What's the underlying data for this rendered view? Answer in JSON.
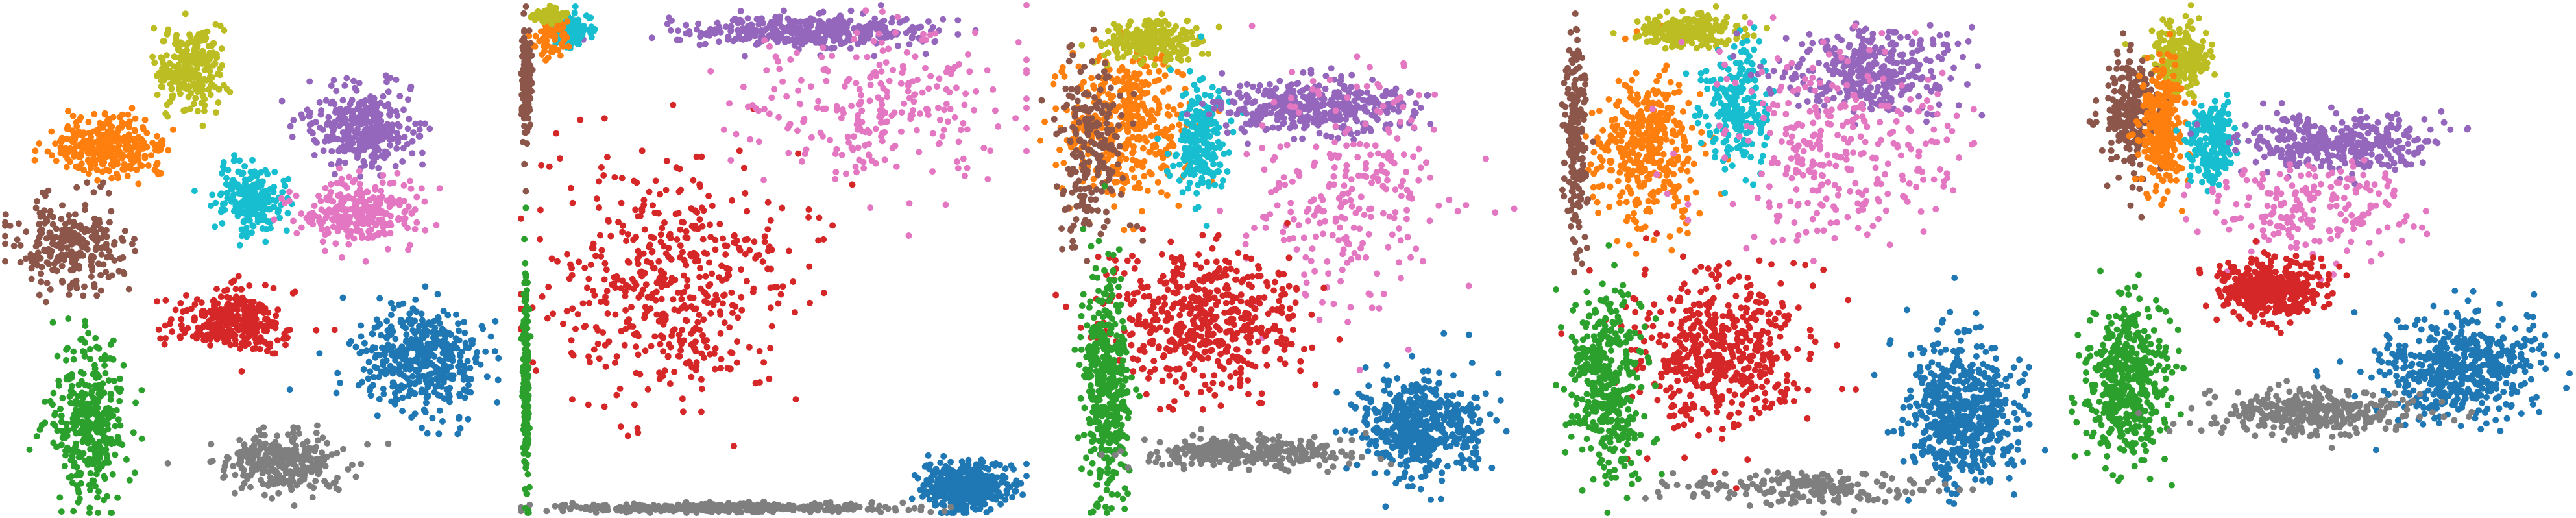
{
  "chart_data": [
    {
      "type": "scatter",
      "title": "",
      "xlabel": "",
      "ylabel": "",
      "xlim": [
        0,
        100
      ],
      "ylim": [
        0,
        100
      ],
      "grid": false,
      "legend": "none",
      "axes_visible": false,
      "series": [
        {
          "color": "#bcbd22",
          "count": 260,
          "center": [
            37,
            88
          ],
          "spread": [
            6,
            7
          ]
        },
        {
          "color": "#ff7f0e",
          "count": 300,
          "center": [
            20,
            72
          ],
          "spread": [
            10,
            5
          ]
        },
        {
          "color": "#8c564b",
          "count": 260,
          "center": [
            13,
            53
          ],
          "spread": [
            10,
            8
          ]
        },
        {
          "color": "#17becf",
          "count": 220,
          "center": [
            49,
            62
          ],
          "spread": [
            6,
            6
          ]
        },
        {
          "color": "#9467bd",
          "count": 320,
          "center": [
            71,
            76
          ],
          "spread": [
            10,
            7
          ]
        },
        {
          "color": "#e377c2",
          "count": 280,
          "center": [
            70,
            59
          ],
          "spread": [
            10,
            6
          ]
        },
        {
          "color": "#d62728",
          "count": 320,
          "center": [
            45,
            38
          ],
          "spread": [
            10,
            5
          ]
        },
        {
          "color": "#1f77b4",
          "count": 420,
          "center": [
            83,
            30
          ],
          "spread": [
            12,
            10
          ]
        },
        {
          "color": "#2ca02c",
          "count": 360,
          "center": [
            17,
            18
          ],
          "spread": [
            7,
            14
          ]
        },
        {
          "color": "#7f7f7f",
          "count": 300,
          "center": [
            55,
            10
          ],
          "spread": [
            11,
            5
          ]
        }
      ]
    },
    {
      "type": "scatter",
      "title": "",
      "xlabel": "",
      "ylabel": "",
      "xlim": [
        0,
        100
      ],
      "ylim": [
        0,
        100
      ],
      "grid": false,
      "legend": "none",
      "axes_visible": false,
      "series": [
        {
          "color": "#d62728",
          "count": 500,
          "center": [
            30,
            45
          ],
          "spread": [
            22,
            22
          ]
        },
        {
          "color": "#9467bd",
          "count": 380,
          "center": [
            58,
            95
          ],
          "spread": [
            22,
            3
          ]
        },
        {
          "color": "#e377c2",
          "count": 260,
          "center": [
            72,
            80
          ],
          "spread": [
            25,
            15
          ]
        },
        {
          "color": "#17becf",
          "count": 120,
          "center": [
            10,
            95
          ],
          "spread": [
            4,
            3
          ]
        },
        {
          "color": "#ff7f0e",
          "count": 60,
          "center": [
            6,
            93
          ],
          "spread": [
            3,
            4
          ]
        },
        {
          "color": "#bcbd22",
          "count": 60,
          "center": [
            5,
            98
          ],
          "spread": [
            3,
            1.5
          ]
        },
        {
          "color": "#8c564b",
          "count": 120,
          "center": [
            1,
            85
          ],
          "spread": [
            1,
            10
          ]
        },
        {
          "color": "#1f77b4",
          "count": 500,
          "center": [
            88,
            5
          ],
          "spread": [
            8,
            4
          ]
        },
        {
          "color": "#7f7f7f",
          "count": 400,
          "center": [
            40,
            1
          ],
          "spread": [
            30,
            0.8
          ]
        },
        {
          "color": "#2ca02c",
          "count": 200,
          "center": [
            1,
            25
          ],
          "spread": [
            0.6,
            20
          ]
        }
      ]
    },
    {
      "type": "scatter",
      "title": "",
      "xlabel": "",
      "ylabel": "",
      "xlim": [
        0,
        100
      ],
      "ylim": [
        0,
        100
      ],
      "grid": false,
      "legend": "none",
      "axes_visible": false,
      "series": [
        {
          "color": "#ff7f0e",
          "count": 420,
          "center": [
            17,
            76
          ],
          "spread": [
            11,
            13
          ]
        },
        {
          "color": "#bcbd22",
          "count": 220,
          "center": [
            22,
            93
          ],
          "spread": [
            9,
            4
          ]
        },
        {
          "color": "#8c564b",
          "count": 220,
          "center": [
            10,
            72
          ],
          "spread": [
            6,
            16
          ]
        },
        {
          "color": "#17becf",
          "count": 220,
          "center": [
            32,
            74
          ],
          "spread": [
            5,
            10
          ]
        },
        {
          "color": "#9467bd",
          "count": 380,
          "center": [
            55,
            80
          ],
          "spread": [
            18,
            5
          ]
        },
        {
          "color": "#e377c2",
          "count": 260,
          "center": [
            62,
            62
          ],
          "spread": [
            18,
            20
          ]
        },
        {
          "color": "#d62728",
          "count": 500,
          "center": [
            33,
            38
          ],
          "spread": [
            18,
            13
          ]
        },
        {
          "color": "#2ca02c",
          "count": 420,
          "center": [
            13,
            25
          ],
          "spread": [
            4,
            20
          ]
        },
        {
          "color": "#1f77b4",
          "count": 520,
          "center": [
            76,
            17
          ],
          "spread": [
            11,
            9
          ]
        },
        {
          "color": "#7f7f7f",
          "count": 280,
          "center": [
            40,
            12
          ],
          "spread": [
            18,
            3
          ]
        }
      ]
    },
    {
      "type": "scatter",
      "title": "",
      "xlabel": "",
      "ylabel": "",
      "xlim": [
        0,
        100
      ],
      "ylim": [
        0,
        100
      ],
      "grid": false,
      "legend": "none",
      "axes_visible": false,
      "series": [
        {
          "color": "#ff7f0e",
          "count": 380,
          "center": [
            18,
            72
          ],
          "spread": [
            9,
            13
          ]
        },
        {
          "color": "#bcbd22",
          "count": 220,
          "center": [
            26,
            95
          ],
          "spread": [
            9,
            3
          ]
        },
        {
          "color": "#8c564b",
          "count": 200,
          "center": [
            4,
            72
          ],
          "spread": [
            2,
            18
          ]
        },
        {
          "color": "#17becf",
          "count": 220,
          "center": [
            36,
            80
          ],
          "spread": [
            6,
            10
          ]
        },
        {
          "color": "#9467bd",
          "count": 360,
          "center": [
            62,
            87
          ],
          "spread": [
            16,
            7
          ]
        },
        {
          "color": "#e377c2",
          "count": 320,
          "center": [
            56,
            72
          ],
          "spread": [
            22,
            17
          ]
        },
        {
          "color": "#d62728",
          "count": 500,
          "center": [
            32,
            32
          ],
          "spread": [
            16,
            14
          ]
        },
        {
          "color": "#2ca02c",
          "count": 380,
          "center": [
            10,
            25
          ],
          "spread": [
            7,
            16
          ]
        },
        {
          "color": "#1f77b4",
          "count": 560,
          "center": [
            81,
            20
          ],
          "spread": [
            10,
            13
          ]
        },
        {
          "color": "#7f7f7f",
          "count": 200,
          "center": [
            50,
            5
          ],
          "spread": [
            22,
            3
          ]
        }
      ]
    },
    {
      "type": "scatter",
      "title": "",
      "xlabel": "",
      "ylabel": "",
      "xlim": [
        0,
        100
      ],
      "ylim": [
        0,
        100
      ],
      "grid": false,
      "legend": "none",
      "axes_visible": false,
      "series": [
        {
          "color": "#bcbd22",
          "count": 220,
          "center": [
            22,
            90
          ],
          "spread": [
            5,
            6
          ]
        },
        {
          "color": "#8c564b",
          "count": 240,
          "center": [
            12,
            79
          ],
          "spread": [
            5,
            10
          ]
        },
        {
          "color": "#ff7f0e",
          "count": 300,
          "center": [
            18,
            76
          ],
          "spread": [
            4,
            11
          ]
        },
        {
          "color": "#17becf",
          "count": 200,
          "center": [
            28,
            73
          ],
          "spread": [
            4,
            7
          ]
        },
        {
          "color": "#9467bd",
          "count": 360,
          "center": [
            53,
            73
          ],
          "spread": [
            17,
            5
          ]
        },
        {
          "color": "#e377c2",
          "count": 200,
          "center": [
            48,
            60
          ],
          "spread": [
            18,
            9
          ]
        },
        {
          "color": "#d62728",
          "count": 420,
          "center": [
            40,
            44
          ],
          "spread": [
            10,
            5
          ]
        },
        {
          "color": "#2ca02c",
          "count": 460,
          "center": [
            11,
            26
          ],
          "spread": [
            7,
            14
          ]
        },
        {
          "color": "#1f77b4",
          "count": 520,
          "center": [
            78,
            28
          ],
          "spread": [
            15,
            9
          ]
        },
        {
          "color": "#7f7f7f",
          "count": 340,
          "center": [
            48,
            20
          ],
          "spread": [
            19,
            4
          ]
        }
      ]
    }
  ]
}
